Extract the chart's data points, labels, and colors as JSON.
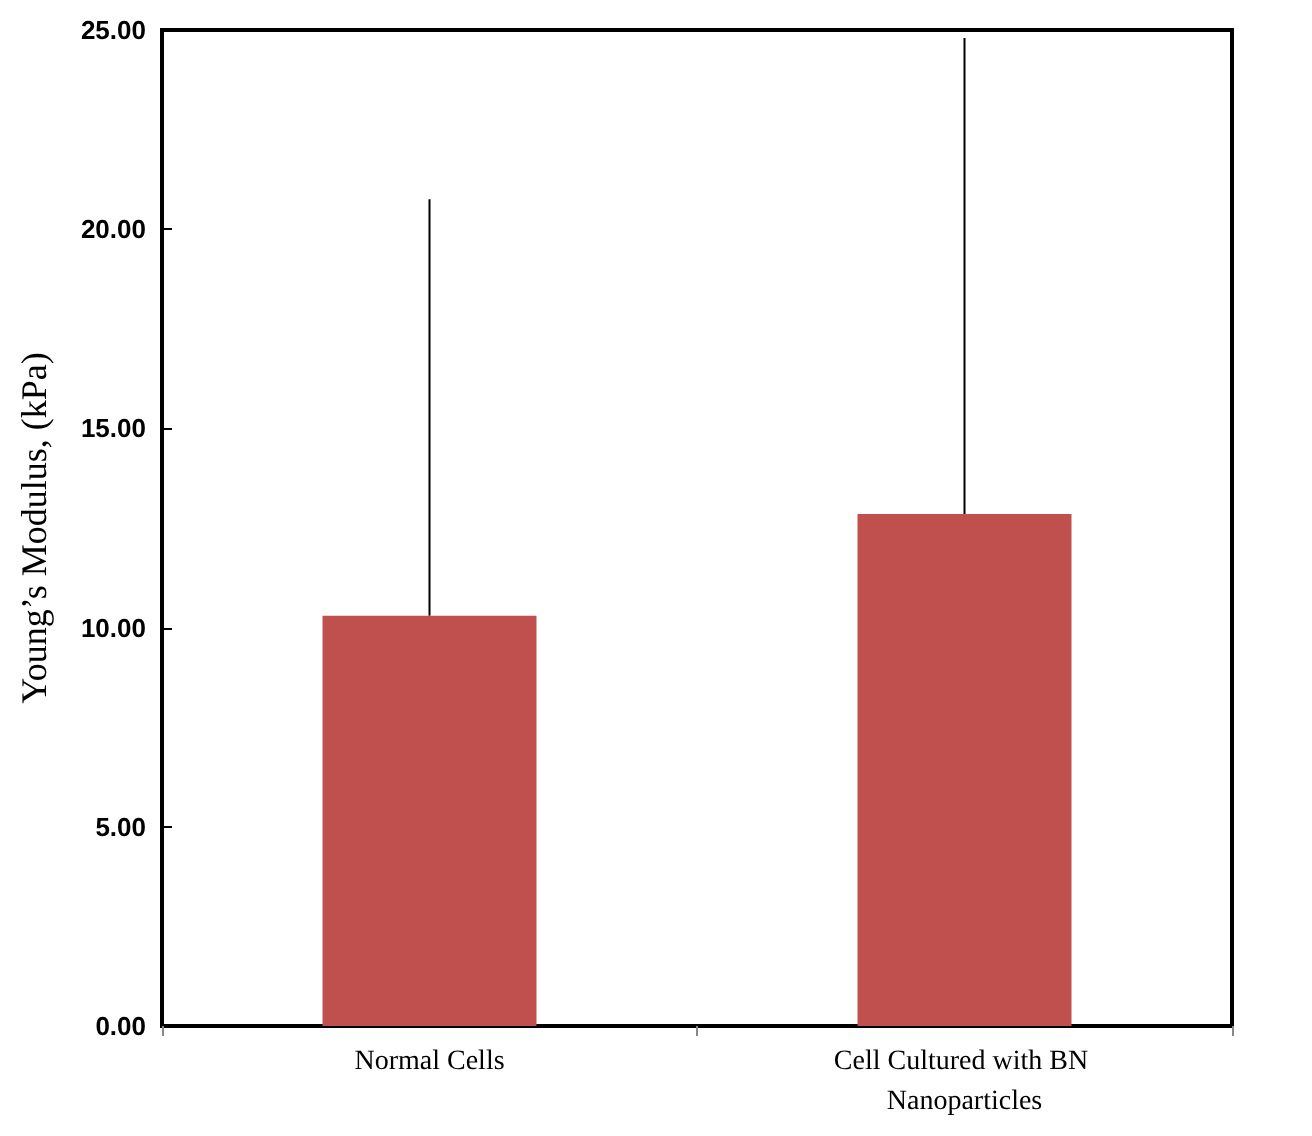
{
  "chart_data": {
    "type": "bar",
    "ylabel": "Young’s Modulus, (kPa)",
    "categories": [
      "Normal Cells",
      "Cell Cultured with BN Nanoparticles"
    ],
    "values": [
      10.3,
      12.85
    ],
    "errors": [
      [
        10.3,
        20.75
      ],
      [
        12.85,
        24.8
      ]
    ],
    "color": "#c0504d",
    "ylim": [
      0,
      25
    ],
    "yticks": [
      {
        "value": 0,
        "label": "0.00"
      },
      {
        "value": 5,
        "label": "5.00"
      },
      {
        "value": 10,
        "label": "10.00"
      },
      {
        "value": 15,
        "label": "15.00"
      },
      {
        "value": 20,
        "label": "20.00"
      },
      {
        "value": 25,
        "label": "25.00"
      }
    ],
    "grid": false
  }
}
